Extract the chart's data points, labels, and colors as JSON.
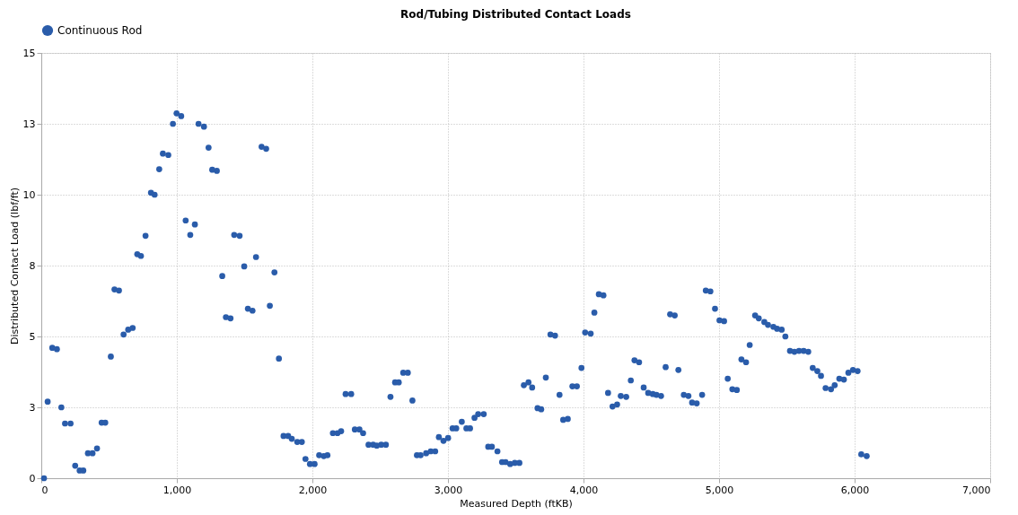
{
  "chart_data": {
    "type": "scatter",
    "title": "Rod/Tubing Distributed Contact Loads",
    "xlabel": "Measured Depth (ftKB)",
    "ylabel": "Distributed Contact Load (lbf/ft)",
    "xlim": [
      0,
      7000
    ],
    "xticks": [
      0,
      {
        "value": 1000,
        "label": "1,000"
      },
      {
        "value": 2000,
        "label": "2,000"
      },
      {
        "value": 3000,
        "label": "3,000"
      },
      {
        "value": 4000,
        "label": "4,000"
      },
      {
        "value": 5000,
        "label": "5,000"
      },
      {
        "value": 6000,
        "label": "6,000"
      },
      {
        "value": 7000,
        "label": "7,000"
      }
    ],
    "ylim": [
      0,
      15
    ],
    "yticks": [
      0,
      {
        "value": 2.5,
        "label": "3"
      },
      5,
      {
        "value": 7.5,
        "label": "8"
      },
      10,
      {
        "value": 12.5,
        "label": "13"
      },
      15
    ],
    "grid": true,
    "legend": "top",
    "marker": "circle",
    "series": [
      {
        "name": "Continuous Rod",
        "color": "#2a5caa",
        "x": [
          20,
          47,
          81,
          115,
          148,
          175,
          216,
          250,
          283,
          310,
          344,
          378,
          411,
          445,
          472,
          513,
          540,
          573,
          607,
          641,
          674,
          708,
          735,
          769,
          809,
          836,
          870,
          897,
          937,
          971,
          998,
          1032,
          1065,
          1099,
          1133,
          1160,
          1200,
          1234,
          1261,
          1295,
          1335,
          1362,
          1396,
          1423,
          1463,
          1497,
          1524,
          1558,
          1584,
          1625,
          1659,
          1686,
          1720,
          1753,
          1787,
          1821,
          1848,
          1888,
          1922,
          1949,
          1982,
          2016,
          2050,
          2084,
          2111,
          2151,
          2185,
          2212,
          2245,
          2286,
          2313,
          2347,
          2374,
          2414,
          2448,
          2475,
          2508,
          2542,
          2576,
          2610,
          2637,
          2670,
          2704,
          2738,
          2771,
          2798,
          2839,
          2873,
          2906,
          2933,
          2967,
          3001,
          3034,
          3061,
          3102,
          3136,
          3163,
          3196,
          3223,
          3264,
          3297,
          3324,
          3365,
          3399,
          3425,
          3459,
          3493,
          3527,
          3560,
          3594,
          3621,
          3661,
          3688,
          3722,
          3756,
          3790,
          3823,
          3850,
          3884,
          3918,
          3951,
          3985,
          4012,
          4053,
          4080,
          4113,
          4147,
          4181,
          4214,
          4248,
          4275,
          4315,
          4349,
          4376,
          4410,
          4444,
          4477,
          4511,
          4538,
          4572,
          4606,
          4639,
          4673,
          4700,
          4740,
          4774,
          4801,
          4835,
          4875,
          4902,
          4936,
          4970,
          5003,
          5037,
          5064,
          5098,
          5131,
          5165,
          5199,
          5226,
          5266,
          5293,
          5334,
          5361,
          5401,
          5428,
          5462,
          5489,
          5523,
          5556,
          5590,
          5624,
          5658,
          5691,
          5725,
          5752,
          5786,
          5826,
          5853,
          5887,
          5921,
          5954,
          5988,
          6022,
          6049,
          6089
        ],
        "values": [
          0.0,
          2.7,
          4.6,
          4.55,
          2.5,
          1.93,
          1.93,
          0.44,
          0.27,
          0.27,
          0.88,
          0.88,
          1.05,
          1.96,
          1.96,
          4.29,
          6.66,
          6.62,
          5.07,
          5.24,
          5.3,
          7.9,
          7.84,
          8.55,
          10.07,
          10.0,
          10.9,
          11.45,
          11.4,
          12.5,
          12.87,
          12.77,
          9.09,
          8.58,
          8.95,
          12.5,
          12.4,
          11.66,
          10.88,
          10.84,
          7.13,
          5.68,
          5.64,
          8.58,
          8.55,
          7.47,
          5.98,
          5.91,
          7.8,
          11.69,
          11.62,
          6.08,
          7.26,
          4.22,
          1.49,
          1.49,
          1.39,
          1.28,
          1.28,
          0.68,
          0.5,
          0.5,
          0.81,
          0.78,
          0.81,
          1.59,
          1.59,
          1.66,
          2.97,
          2.97,
          1.72,
          1.72,
          1.59,
          1.18,
          1.18,
          1.15,
          1.18,
          1.18,
          2.87,
          3.38,
          3.38,
          3.72,
          3.72,
          2.74,
          0.81,
          0.81,
          0.88,
          0.95,
          0.95,
          1.45,
          1.32,
          1.42,
          1.76,
          1.76,
          1.99,
          1.76,
          1.76,
          2.13,
          2.26,
          2.26,
          1.11,
          1.11,
          0.95,
          0.57,
          0.57,
          0.5,
          0.54,
          0.54,
          3.28,
          3.38,
          3.2,
          2.47,
          2.43,
          3.55,
          5.07,
          5.03,
          2.94,
          2.06,
          2.09,
          3.24,
          3.24,
          3.89,
          5.14,
          5.1,
          5.84,
          6.49,
          6.45,
          3.01,
          2.53,
          2.6,
          2.9,
          2.87,
          3.45,
          4.16,
          4.09,
          3.2,
          3.01,
          2.97,
          2.94,
          2.9,
          3.92,
          5.78,
          5.74,
          3.82,
          2.94,
          2.9,
          2.67,
          2.64,
          2.94,
          6.62,
          6.59,
          5.98,
          5.57,
          5.54,
          3.51,
          3.14,
          3.11,
          4.19,
          4.09,
          4.7,
          5.74,
          5.64,
          5.51,
          5.41,
          5.34,
          5.27,
          5.24,
          5.0,
          4.49,
          4.46,
          4.49,
          4.49,
          4.46,
          3.89,
          3.78,
          3.61,
          3.18,
          3.14,
          3.28,
          3.51,
          3.48,
          3.72,
          3.82,
          3.78,
          0.84,
          0.78
        ]
      }
    ]
  }
}
